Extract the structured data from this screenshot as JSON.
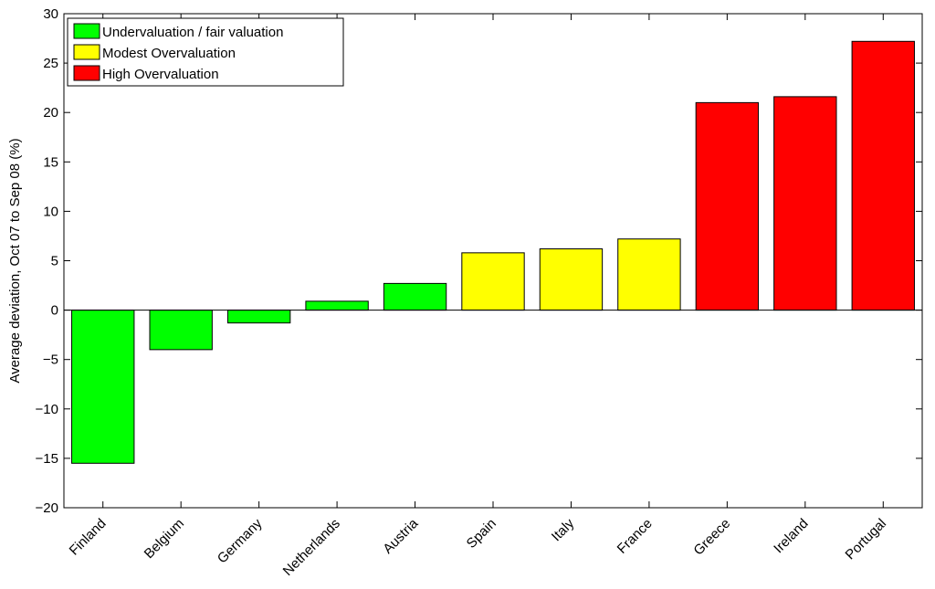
{
  "chart_data": {
    "type": "bar",
    "ylabel": "Average deviation, Oct 07 to Sep 08 (%)",
    "ylim": [
      -20,
      30
    ],
    "yticks": [
      -20,
      -15,
      -10,
      -5,
      0,
      5,
      10,
      15,
      20,
      25,
      30
    ],
    "ytick_labels": [
      "−20",
      "−15",
      "−10",
      "−5",
      "0",
      "5",
      "10",
      "15",
      "20",
      "25",
      "30"
    ],
    "grid": false,
    "legend_position": "top-left",
    "categories": [
      "Finland",
      "Belgium",
      "Germany",
      "Netherlands",
      "Austria",
      "Spain",
      "Italy",
      "France",
      "Greece",
      "Ireland",
      "Portugal"
    ],
    "values": [
      -15.5,
      -4.0,
      -1.3,
      0.9,
      2.7,
      5.8,
      6.2,
      7.2,
      21.0,
      21.6,
      27.2
    ],
    "groups": [
      "low",
      "low",
      "low",
      "low",
      "low",
      "mid",
      "mid",
      "mid",
      "high",
      "high",
      "high"
    ],
    "legend": [
      {
        "key": "low",
        "label": "Undervaluation / fair valuation",
        "color": "#00ff00"
      },
      {
        "key": "mid",
        "label": "Modest Overvaluation",
        "color": "#ffff00"
      },
      {
        "key": "high",
        "label": "High Overvaluation",
        "color": "#ff0000"
      }
    ]
  }
}
